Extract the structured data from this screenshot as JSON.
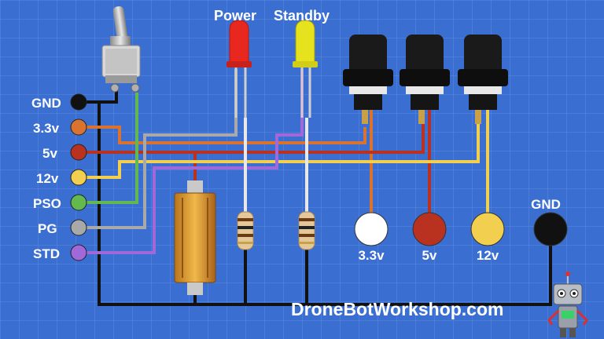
{
  "left_terminals": [
    {
      "label": "GND",
      "color": "#111111"
    },
    {
      "label": "3.3v",
      "color": "#d9732f"
    },
    {
      "label": "5v",
      "color": "#b8321f"
    },
    {
      "label": "12v",
      "color": "#f2cf4f"
    },
    {
      "label": "PSO",
      "color": "#63b84f"
    },
    {
      "label": "PG",
      "color": "#a9a9a9"
    },
    {
      "label": "STD",
      "color": "#a068d9"
    }
  ],
  "leds": [
    {
      "label": "Power",
      "color": "#e8281e"
    },
    {
      "label": "Standby",
      "color": "#e6e21e"
    }
  ],
  "outputs": [
    {
      "label": "3.3v",
      "color": "#ffffff"
    },
    {
      "label": "5v",
      "color": "#b8321f"
    },
    {
      "label": "12v",
      "color": "#f2cf4f"
    }
  ],
  "gnd_output": {
    "label": "GND",
    "color": "#111111"
  },
  "watermark": "DroneBotWorkshop.com",
  "resistor_marking": "",
  "icons": [
    "toggle-switch-icon",
    "led-icon",
    "fuse-holder-icon",
    "resistor-icon",
    "power-resistor-icon",
    "robot-mascot-icon"
  ]
}
